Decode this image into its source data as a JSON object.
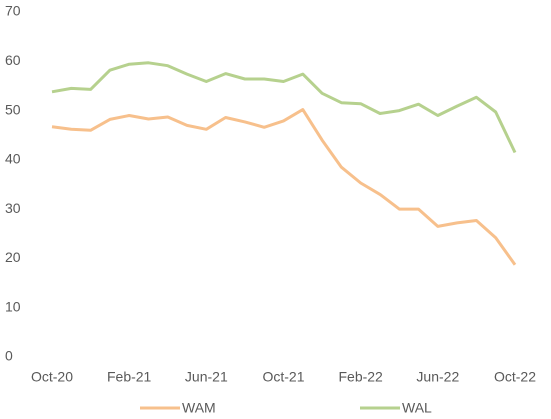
{
  "chart_data": {
    "type": "line",
    "categories": [
      "Oct-20",
      null,
      null,
      null,
      "Feb-21",
      null,
      null,
      null,
      "Jun-21",
      null,
      null,
      null,
      "Oct-21",
      null,
      null,
      null,
      "Feb-22",
      null,
      null,
      null,
      "Jun-22",
      null,
      null,
      null,
      "Oct-22"
    ],
    "series": [
      {
        "name": "WAM",
        "color": "#f7c08c",
        "values": [
          46.7,
          46.2,
          46.0,
          48.2,
          49.0,
          48.3,
          48.7,
          47.0,
          46.2,
          48.6,
          47.7,
          46.6,
          47.9,
          50.2,
          44.0,
          38.5,
          35.3,
          33.0,
          30.0,
          30.0,
          26.5,
          27.2,
          27.7,
          24.2,
          18.7
        ]
      },
      {
        "name": "WAL",
        "color": "#b6d18e",
        "values": [
          53.8,
          54.5,
          54.3,
          58.2,
          59.4,
          59.7,
          59.1,
          57.4,
          55.9,
          57.5,
          56.4,
          56.4,
          55.9,
          57.4,
          53.5,
          51.6,
          51.4,
          49.4,
          50.0,
          51.3,
          49.0,
          50.9,
          52.7,
          49.7,
          41.5
        ]
      }
    ],
    "ylim": [
      0,
      70
    ],
    "yticks": [
      0,
      10,
      20,
      30,
      40,
      50,
      60,
      70
    ],
    "grid": false,
    "legend": "bottom"
  }
}
